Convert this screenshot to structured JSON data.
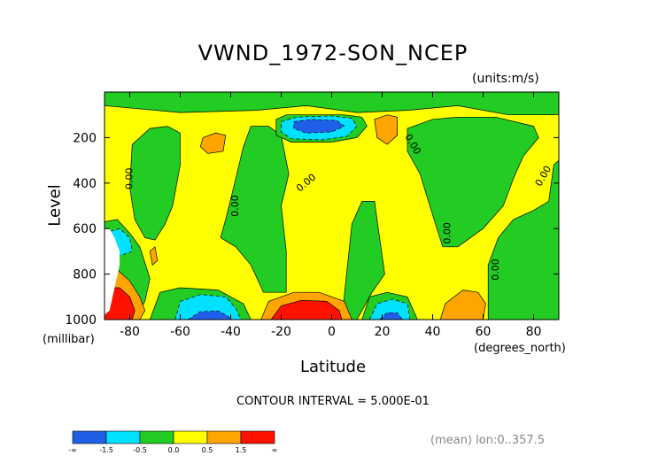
{
  "chart_data": {
    "type": "heatmap",
    "subtype": "filled-contour",
    "title": "VWND_1972-SON_NCEP",
    "units_label": "(units:m/s)",
    "xlabel": "Latitude",
    "x_unit_label": "(degrees_north)",
    "ylabel": "Level",
    "y_unit_label": "(millibar)",
    "xlim": [
      -90,
      90
    ],
    "ylim": [
      1000,
      0
    ],
    "x_ticks": [
      -80,
      -60,
      -40,
      -20,
      0,
      20,
      40,
      60,
      80
    ],
    "y_ticks": [
      200,
      400,
      600,
      800,
      1000
    ],
    "contour_interval_text": "CONTOUR INTERVAL = 5.000E-01",
    "footer_note": "(mean) lon:0..357.5",
    "contour_labels": [
      {
        "text": "0.00",
        "lat": -80,
        "lev": 380,
        "angle": -90
      },
      {
        "text": "0.00",
        "lat": -38,
        "lev": 500,
        "angle": -90
      },
      {
        "text": "0.00",
        "lat": -10,
        "lev": 400,
        "angle": -40
      },
      {
        "text": "0.00",
        "lat": 32,
        "lev": 230,
        "angle": 60
      },
      {
        "text": "0.00",
        "lat": 46,
        "lev": 620,
        "angle": -90
      },
      {
        "text": "0.00",
        "lat": 65,
        "lev": 780,
        "angle": -90
      },
      {
        "text": "0.00",
        "lat": 84,
        "lev": 370,
        "angle": -60
      }
    ],
    "colorbar": {
      "bins": [
        {
          "color": "#1f5fe8",
          "lower": "-∞",
          "upper": "-1.5"
        },
        {
          "color": "#00e0ff",
          "lower": "-1.5",
          "upper": "-0.5"
        },
        {
          "color": "#22cc22",
          "lower": "-0.5",
          "upper": "0.0"
        },
        {
          "color": "#ffff00",
          "lower": "0.0",
          "upper": "0.5"
        },
        {
          "color": "#ffa500",
          "lower": "0.5",
          "upper": "1.5"
        },
        {
          "color": "#ff1100",
          "lower": "1.5",
          "upper": "∞"
        }
      ],
      "tick_labels": [
        "-∞",
        "-1.5",
        "-0.5",
        "0.0",
        "0.5",
        "1.5",
        "∞"
      ]
    },
    "regions": [
      {
        "level_bin": "-0.5..0.0",
        "color": "#22cc22",
        "polygon": [
          [
            -90,
            60
          ],
          [
            -60,
            90
          ],
          [
            -30,
            80
          ],
          [
            -10,
            60
          ],
          [
            10,
            90
          ],
          [
            30,
            80
          ],
          [
            50,
            60
          ],
          [
            70,
            100
          ],
          [
            90,
            100
          ],
          [
            90,
            0
          ],
          [
            -90,
            0
          ]
        ]
      },
      {
        "level_bin": "-0.5..0.0",
        "color": "#22cc22",
        "polygon": [
          [
            -79,
            230
          ],
          [
            -72,
            160
          ],
          [
            -65,
            150
          ],
          [
            -60,
            180
          ],
          [
            -60,
            320
          ],
          [
            -63,
            500
          ],
          [
            -66,
            580
          ],
          [
            -70,
            650
          ],
          [
            -74,
            640
          ],
          [
            -78,
            560
          ],
          [
            -80,
            420
          ]
        ]
      },
      {
        "level_bin": "-0.5..0.0",
        "color": "#22cc22",
        "polygon": [
          [
            -32,
            150
          ],
          [
            -25,
            150
          ],
          [
            -20,
            190
          ],
          [
            -17,
            360
          ],
          [
            -20,
            500
          ],
          [
            -18,
            700
          ],
          [
            -18,
            880
          ],
          [
            -27,
            880
          ],
          [
            -32,
            760
          ],
          [
            -38,
            680
          ],
          [
            -44,
            640
          ],
          [
            -42,
            560
          ],
          [
            -38,
            380
          ],
          [
            -35,
            240
          ]
        ]
      },
      {
        "level_bin": "-0.5..0.0",
        "color": "#22cc22",
        "polygon": [
          [
            4,
            1000
          ],
          [
            8,
            580
          ],
          [
            12,
            480
          ],
          [
            17,
            480
          ],
          [
            19,
            640
          ],
          [
            21,
            800
          ],
          [
            16,
            880
          ],
          [
            10,
            1000
          ]
        ]
      },
      {
        "level_bin": "-0.5..0.0",
        "color": "#22cc22",
        "polygon": [
          [
            30,
            160
          ],
          [
            40,
            120
          ],
          [
            50,
            110
          ],
          [
            65,
            110
          ],
          [
            80,
            150
          ],
          [
            82,
            200
          ],
          [
            76,
            280
          ],
          [
            72,
            380
          ],
          [
            68,
            500
          ],
          [
            60,
            600
          ],
          [
            50,
            680
          ],
          [
            44,
            680
          ],
          [
            40,
            540
          ],
          [
            35,
            360
          ],
          [
            30,
            260
          ]
        ]
      },
      {
        "level_bin": "-0.5..0.0",
        "color": "#22cc22",
        "polygon": [
          [
            62,
            760
          ],
          [
            66,
            640
          ],
          [
            72,
            560
          ],
          [
            80,
            520
          ],
          [
            86,
            480
          ],
          [
            88,
            320
          ],
          [
            90,
            300
          ],
          [
            90,
            1000
          ],
          [
            62,
            1000
          ]
        ]
      },
      {
        "level_bin": "-0.5..0.0",
        "color": "#22cc22",
        "polygon": [
          [
            -90,
            570
          ],
          [
            -85,
            560
          ],
          [
            -80,
            620
          ],
          [
            -76,
            680
          ],
          [
            -72,
            820
          ],
          [
            -74,
            920
          ],
          [
            -78,
            1000
          ],
          [
            -90,
            1000
          ]
        ]
      },
      {
        "level_bin": "-0.5..0.0",
        "color": "#22cc22",
        "polygon": [
          [
            -72,
            1000
          ],
          [
            -68,
            880
          ],
          [
            -60,
            860
          ],
          [
            -45,
            870
          ],
          [
            -35,
            930
          ],
          [
            -32,
            1000
          ]
        ]
      },
      {
        "level_bin": "-0.5..0.0",
        "color": "#22cc22",
        "polygon": [
          [
            12,
            1000
          ],
          [
            15,
            900
          ],
          [
            22,
            880
          ],
          [
            30,
            900
          ],
          [
            34,
            1000
          ]
        ]
      },
      {
        "level_bin": "-0.5..0.0",
        "color": "#22cc22",
        "polygon": [
          [
            -22,
            120
          ],
          [
            -18,
            100
          ],
          [
            5,
            100
          ],
          [
            12,
            110
          ],
          [
            14,
            150
          ],
          [
            10,
            200
          ],
          [
            0,
            220
          ],
          [
            -16,
            220
          ],
          [
            -22,
            190
          ]
        ]
      },
      {
        "level_bin": "-1.5..-0.5",
        "color": "#00e0ff",
        "polygon": [
          [
            -20,
            130
          ],
          [
            -14,
            110
          ],
          [
            0,
            105
          ],
          [
            8,
            115
          ],
          [
            10,
            150
          ],
          [
            6,
            195
          ],
          [
            -4,
            210
          ],
          [
            -16,
            205
          ],
          [
            -20,
            175
          ]
        ]
      },
      {
        "level_bin": "-∞..-1.5",
        "color": "#1f5fe8",
        "polygon": [
          [
            -15,
            130
          ],
          [
            -8,
            120
          ],
          [
            2,
            125
          ],
          [
            5,
            150
          ],
          [
            0,
            175
          ],
          [
            -10,
            180
          ],
          [
            -15,
            160
          ]
        ]
      },
      {
        "level_bin": "-1.5..-0.5",
        "color": "#00e0ff",
        "polygon": [
          [
            -62,
            1000
          ],
          [
            -60,
            920
          ],
          [
            -52,
            890
          ],
          [
            -42,
            900
          ],
          [
            -38,
            950
          ],
          [
            -36,
            1000
          ]
        ]
      },
      {
        "level_bin": "-∞..-1.5",
        "color": "#1f5fe8",
        "polygon": [
          [
            -57,
            1000
          ],
          [
            -52,
            965
          ],
          [
            -45,
            962
          ],
          [
            -41,
            985
          ],
          [
            -40,
            1000
          ]
        ]
      },
      {
        "level_bin": "-1.5..-0.5",
        "color": "#00e0ff",
        "polygon": [
          [
            15,
            1000
          ],
          [
            18,
            930
          ],
          [
            24,
            910
          ],
          [
            30,
            930
          ],
          [
            31,
            1000
          ]
        ]
      },
      {
        "level_bin": "-∞..-1.5",
        "color": "#1f5fe8",
        "polygon": [
          [
            19,
            1000
          ],
          [
            22,
            970
          ],
          [
            26,
            970
          ],
          [
            28,
            1000
          ]
        ]
      },
      {
        "level_bin": "-1.5..-0.5",
        "color": "#00e0ff",
        "polygon": [
          [
            -90,
            620
          ],
          [
            -84,
            600
          ],
          [
            -80,
            640
          ],
          [
            -79,
            700
          ],
          [
            -84,
            720
          ],
          [
            -90,
            720
          ]
        ]
      },
      {
        "level_bin": "0.5..1.5",
        "color": "#ffa500",
        "polygon": [
          [
            -51,
            200
          ],
          [
            -46,
            180
          ],
          [
            -42,
            190
          ],
          [
            -43,
            260
          ],
          [
            -49,
            270
          ],
          [
            -52,
            240
          ]
        ]
      },
      {
        "level_bin": "0.5..1.5",
        "color": "#ffa500",
        "polygon": [
          [
            17,
            120
          ],
          [
            22,
            100
          ],
          [
            26,
            110
          ],
          [
            26,
            190
          ],
          [
            22,
            230
          ],
          [
            18,
            200
          ]
        ]
      },
      {
        "level_bin": "0.5..1.5",
        "color": "#ffa500",
        "polygon": [
          [
            43,
            1000
          ],
          [
            45,
            930
          ],
          [
            52,
            870
          ],
          [
            58,
            880
          ],
          [
            61,
            930
          ],
          [
            60,
            1000
          ]
        ]
      },
      {
        "level_bin": "0.5..1.5",
        "color": "#ffa500",
        "polygon": [
          [
            -72,
            700
          ],
          [
            -70,
            680
          ],
          [
            -69,
            740
          ],
          [
            -71,
            760
          ]
        ]
      },
      {
        "level_bin": "0.5..1.5",
        "color": "#ffa500",
        "polygon": [
          [
            -28,
            1000
          ],
          [
            -25,
            920
          ],
          [
            -15,
            880
          ],
          [
            -5,
            880
          ],
          [
            5,
            920
          ],
          [
            8,
            1000
          ]
        ]
      },
      {
        "level_bin": "0.5..1.5",
        "color": "#ffa500",
        "polygon": [
          [
            -90,
            780
          ],
          [
            -85,
            780
          ],
          [
            -80,
            830
          ],
          [
            -76,
            900
          ],
          [
            -74,
            960
          ],
          [
            -76,
            1000
          ],
          [
            -90,
            1000
          ]
        ]
      },
      {
        "level_bin": "1.5..∞",
        "color": "#ff1100",
        "polygon": [
          [
            -24,
            1000
          ],
          [
            -20,
            940
          ],
          [
            -12,
            915
          ],
          [
            -2,
            920
          ],
          [
            3,
            960
          ],
          [
            4,
            1000
          ]
        ]
      },
      {
        "level_bin": "1.5..∞",
        "color": "#ff1100",
        "polygon": [
          [
            -90,
            860
          ],
          [
            -84,
            860
          ],
          [
            -80,
            900
          ],
          [
            -78,
            960
          ],
          [
            -79,
            1000
          ],
          [
            -90,
            1000
          ]
        ]
      }
    ]
  }
}
